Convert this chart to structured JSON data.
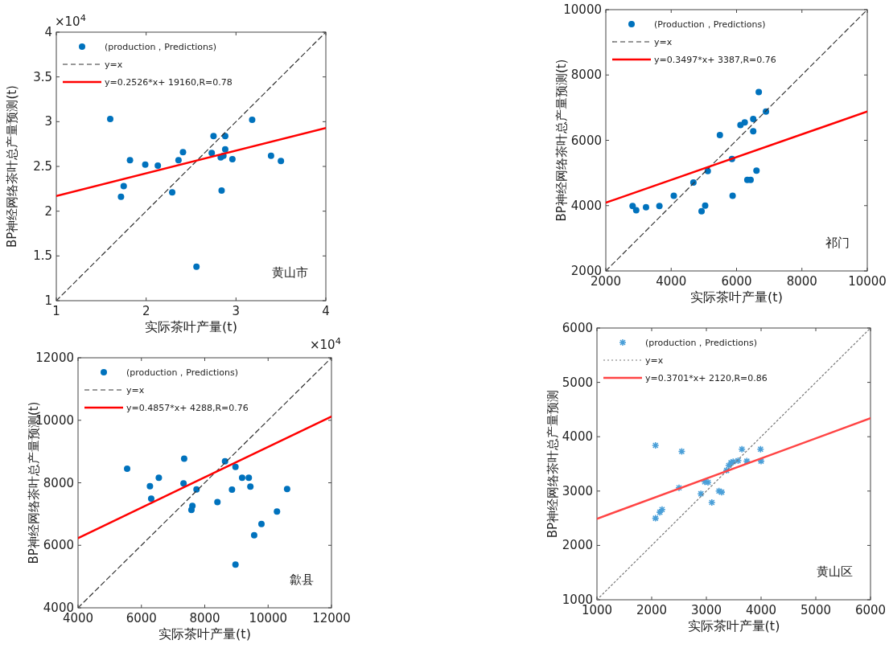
{
  "chart_data": [
    {
      "type": "scatter",
      "xlabel": "实际茶叶产量(t)",
      "ylabel": "BP神经网络茶叶总产量预测(t)",
      "xlim": [
        1,
        4
      ],
      "ylim": [
        1,
        4
      ],
      "xticks": [
        1,
        2,
        3,
        4
      ],
      "yticks": [
        1,
        1.5,
        2,
        2.5,
        3,
        3.5,
        4
      ],
      "legend": "top left",
      "grid": false,
      "annotations": [
        "黄山市",
        "×10$^{4}$",
        "×10$^{4}$"
      ],
      "series": [
        {
          "name": "(production，Predictions)",
          "marker": "circle",
          "color": "#0072bd",
          "x": [
            1.6,
            1.72,
            1.75,
            1.82,
            1.99,
            2.13,
            2.29,
            2.36,
            2.41,
            2.56,
            2.73,
            2.75,
            2.83,
            2.84,
            2.86,
            2.88,
            2.88,
            2.96,
            3.18,
            3.39,
            3.5
          ],
          "values": [
            3.03,
            2.16,
            2.28,
            2.57,
            2.52,
            2.51,
            2.21,
            2.57,
            2.66,
            1.38,
            2.65,
            2.84,
            2.6,
            2.23,
            2.62,
            2.84,
            2.69,
            2.58,
            3.02,
            2.62,
            2.56
          ]
        },
        {
          "name": "y=x",
          "type": "line",
          "color": "#333333",
          "line_style": "dashed",
          "x": [
            1,
            4
          ],
          "values": [
            1,
            4
          ]
        },
        {
          "name": "y=0.2526*x+ 19160,R=0.78",
          "type": "line",
          "color": "#ff0000",
          "line_style": "solid",
          "x": [
            1,
            4
          ],
          "values": [
            2.17,
            2.93
          ]
        }
      ]
    },
    {
      "type": "scatter",
      "xlabel": "实际茶叶产量(t)",
      "ylabel": "BP神经网络茶叶总产量预测(t)",
      "xlim": [
        2000,
        10000
      ],
      "ylim": [
        2000,
        10000
      ],
      "xticks": [
        2000,
        4000,
        6000,
        8000,
        10000
      ],
      "yticks": [
        2000,
        4000,
        6000,
        8000,
        10000
      ],
      "legend": "top left",
      "grid": false,
      "annotations": [
        "祁门"
      ],
      "series": [
        {
          "name": "(Production，Predictions)",
          "marker": "circle",
          "color": "#0072bd",
          "x": [
            2820,
            2930,
            3230,
            3640,
            4080,
            4680,
            4930,
            5040,
            5120,
            5490,
            5860,
            5880,
            6120,
            6250,
            6330,
            6430,
            6510,
            6510,
            6610,
            6680,
            6900
          ],
          "values": [
            3990,
            3860,
            3950,
            3990,
            4300,
            4710,
            3830,
            4000,
            5060,
            6160,
            5430,
            4300,
            6470,
            6550,
            4790,
            4790,
            6650,
            6280,
            5070,
            7480,
            6880
          ]
        },
        {
          "name": "y=x",
          "type": "line",
          "color": "#333333",
          "line_style": "dashed",
          "x": [
            2000,
            10000
          ],
          "values": [
            2000,
            10000
          ]
        },
        {
          "name": "y=0.3497*x+ 3387,R=0.76",
          "type": "line",
          "color": "#ff0000",
          "line_style": "solid",
          "x": [
            2000,
            10000
          ],
          "values": [
            4090,
            6880
          ]
        }
      ]
    },
    {
      "type": "scatter",
      "xlabel": "实际茶叶产量(t)",
      "ylabel": "BP神经网络茶叶总产量预测(t)",
      "xlim": [
        4000,
        12000
      ],
      "ylim": [
        4000,
        12000
      ],
      "xticks": [
        4000,
        6000,
        8000,
        10000,
        12000
      ],
      "yticks": [
        4000,
        6000,
        8000,
        10000,
        12000
      ],
      "legend": "top left",
      "grid": false,
      "annotations": [
        "歙县"
      ],
      "series": [
        {
          "name": "(production，Predictions)",
          "marker": "circle",
          "color": "#0072bd",
          "x": [
            5550,
            6270,
            6310,
            6550,
            7350,
            7330,
            7610,
            7580,
            7740,
            8400,
            8640,
            8860,
            8970,
            8970,
            9180,
            9390,
            9440,
            9560,
            9790,
            10280,
            10600
          ],
          "values": [
            8450,
            7890,
            7490,
            8160,
            8770,
            7980,
            7260,
            7130,
            7790,
            7380,
            8690,
            7780,
            8510,
            5380,
            8160,
            8160,
            7880,
            6320,
            6680,
            7080,
            7800
          ]
        },
        {
          "name": "y=x",
          "type": "line",
          "color": "#333333",
          "line_style": "dashed",
          "x": [
            4000,
            12000
          ],
          "values": [
            4000,
            12000
          ]
        },
        {
          "name": "y=0.4857*x+ 4288,R=0.76",
          "type": "line",
          "color": "#ff0000",
          "line_style": "solid",
          "x": [
            4000,
            12000
          ],
          "values": [
            6230,
            10120
          ]
        }
      ]
    },
    {
      "type": "scatter",
      "xlabel": "实际茶叶产量(t)",
      "ylabel": "BP神经网络茶叶总产量预测",
      "xlim": [
        1000,
        6000
      ],
      "ylim": [
        1000,
        6000
      ],
      "xticks": [
        1000,
        2000,
        3000,
        4000,
        5000,
        6000
      ],
      "yticks": [
        1000,
        2000,
        3000,
        4000,
        5000,
        6000
      ],
      "legend": "top left",
      "grid": false,
      "annotations": [
        "黄山区"
      ],
      "series": [
        {
          "name": "(production，Predictions)",
          "marker": "cross",
          "color": "#4a9fd8",
          "x": [
            2070,
            2550,
            2500,
            2070,
            2150,
            2190,
            2900,
            2970,
            3030,
            3100,
            3230,
            3280,
            3370,
            3410,
            3450,
            3490,
            3580,
            3650,
            3740,
            3990,
            4000
          ],
          "values": [
            3840,
            3730,
            3060,
            2500,
            2610,
            2660,
            2950,
            3170,
            3160,
            2790,
            3000,
            2980,
            3380,
            3470,
            3520,
            3540,
            3560,
            3770,
            3550,
            3770,
            3550
          ]
        },
        {
          "name": "y=x",
          "type": "line",
          "color": "#777777",
          "line_style": "dotted",
          "x": [
            1000,
            6000
          ],
          "values": [
            1000,
            6000
          ]
        },
        {
          "name": "y=0.3701*x+ 2120,R=0.86",
          "type": "line",
          "color": "#ff4444",
          "line_style": "solid",
          "x": [
            1000,
            6000
          ],
          "values": [
            2490,
            4340
          ]
        }
      ]
    }
  ]
}
